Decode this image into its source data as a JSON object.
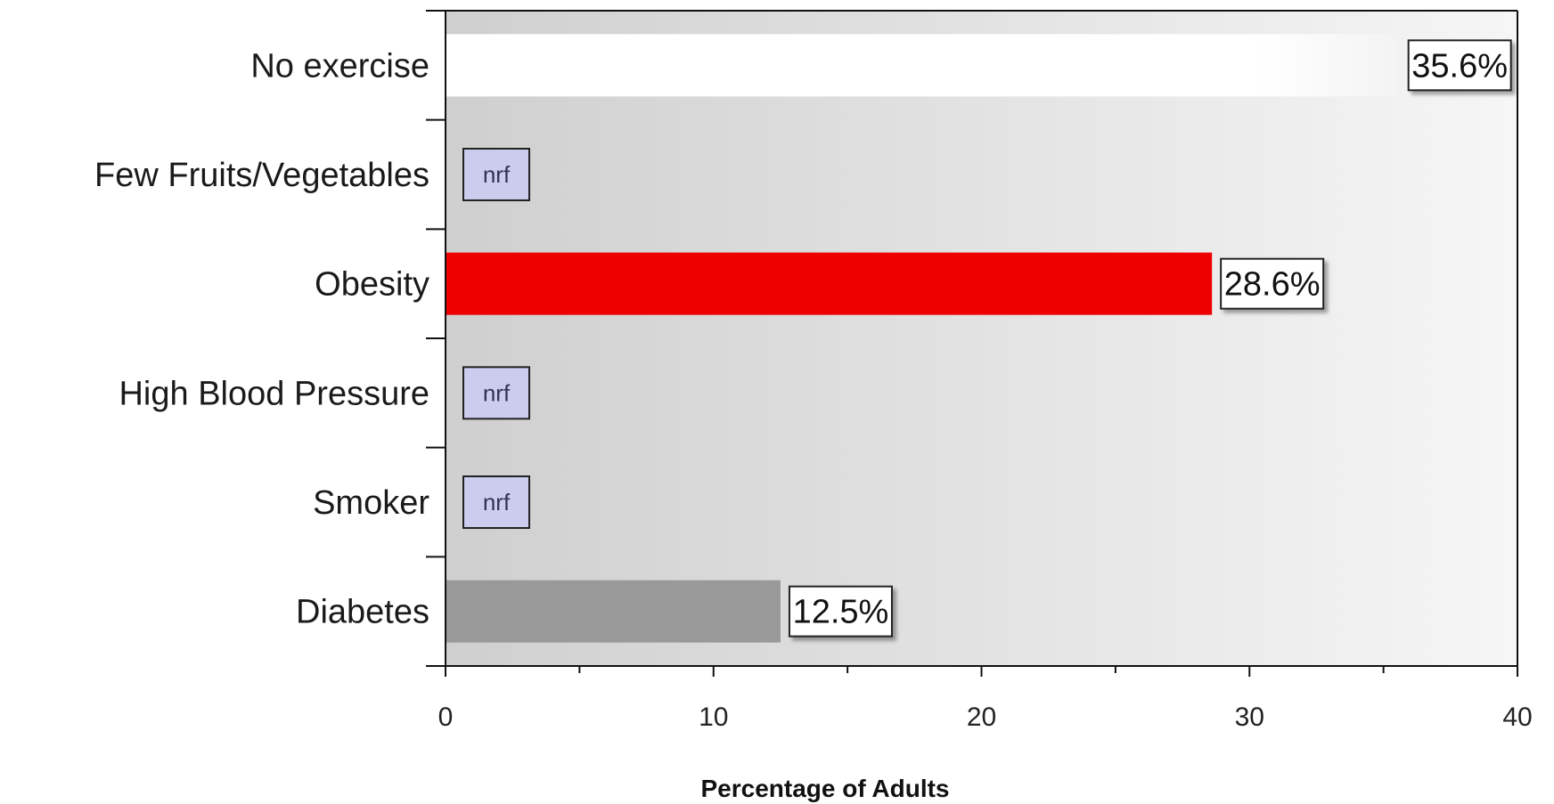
{
  "chart_data": {
    "type": "bar",
    "orientation": "horizontal",
    "categories": [
      "No exercise",
      "Few Fruits/Vegetables",
      "Obesity",
      "High Blood Pressure",
      "Smoker",
      "Diabetes"
    ],
    "values": [
      35.6,
      null,
      28.6,
      null,
      null,
      12.5
    ],
    "value_labels": [
      "35.6%",
      "nrf",
      "28.6%",
      "nrf",
      "nrf",
      "12.5%"
    ],
    "bar_colors": [
      "#ffffff",
      null,
      "#ee0000",
      null,
      null,
      "#999999"
    ],
    "nrf_color": "#ccccee",
    "xlabel": "Percentage of Adults",
    "xlim": [
      0,
      40
    ],
    "xticks": [
      0,
      10,
      20,
      30,
      40
    ],
    "grid": false,
    "background": "gradient"
  }
}
